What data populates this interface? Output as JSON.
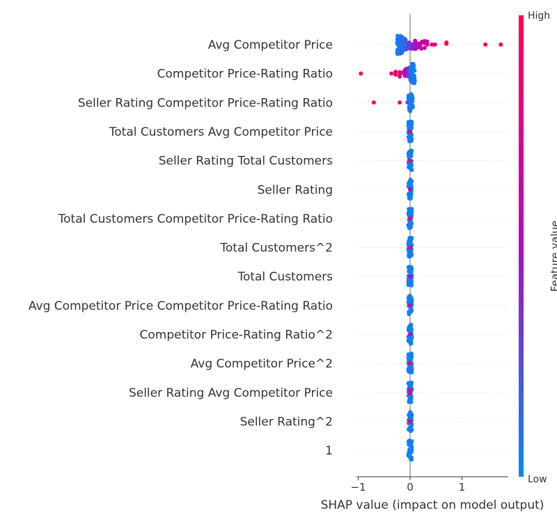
{
  "chart_data": {
    "type": "scatter",
    "subtype": "shap-beeswarm",
    "xlabel": "SHAP value (impact on model output)",
    "xlim": [
      -1.05,
      1.85
    ],
    "xticks": [
      -1,
      0,
      1
    ],
    "grid": false,
    "colorbar": {
      "label": "Feature value",
      "high_label": "High",
      "low_label": "Low",
      "low_color": "#008bfb",
      "mid_color": "#b00ac5",
      "high_color": "#ff0052"
    },
    "features": [
      {
        "name": "Avg Competitor Price",
        "points": [
          {
            "x": -0.22,
            "f": 0.05,
            "n": 30
          },
          {
            "x": -0.18,
            "f": 0.1,
            "n": 24
          },
          {
            "x": -0.12,
            "f": 0.1,
            "n": 14
          },
          {
            "x": -0.06,
            "f": 0.2,
            "n": 8
          },
          {
            "x": 0.0,
            "f": 0.3,
            "n": 6
          },
          {
            "x": 0.05,
            "f": 0.4,
            "n": 5
          },
          {
            "x": 0.1,
            "f": 0.5,
            "n": 5
          },
          {
            "x": 0.16,
            "f": 0.55,
            "n": 5
          },
          {
            "x": 0.22,
            "f": 0.6,
            "n": 4
          },
          {
            "x": 0.28,
            "f": 0.65,
            "n": 3
          },
          {
            "x": 0.33,
            "f": 0.7,
            "n": 2
          },
          {
            "x": 0.42,
            "f": 0.85,
            "n": 1
          },
          {
            "x": 0.48,
            "f": 0.9,
            "n": 1
          },
          {
            "x": 0.7,
            "f": 1.0,
            "n": 2
          },
          {
            "x": 1.45,
            "f": 1.0,
            "n": 1
          },
          {
            "x": 1.75,
            "f": 1.0,
            "n": 1
          }
        ]
      },
      {
        "name": "Competitor Price-Rating Ratio",
        "points": [
          {
            "x": -0.95,
            "f": 1.0,
            "n": 1
          },
          {
            "x": -0.36,
            "f": 0.95,
            "n": 1
          },
          {
            "x": -0.28,
            "f": 0.9,
            "n": 2
          },
          {
            "x": -0.2,
            "f": 0.8,
            "n": 3
          },
          {
            "x": -0.13,
            "f": 0.7,
            "n": 4
          },
          {
            "x": -0.07,
            "f": 0.55,
            "n": 6
          },
          {
            "x": -0.02,
            "f": 0.35,
            "n": 10
          },
          {
            "x": 0.02,
            "f": 0.15,
            "n": 20
          },
          {
            "x": 0.06,
            "f": 0.05,
            "n": 30
          }
        ]
      },
      {
        "name": "Seller Rating Competitor Price-Rating Ratio",
        "points": [
          {
            "x": -0.7,
            "f": 1.0,
            "n": 1
          },
          {
            "x": -0.2,
            "f": 0.95,
            "n": 1
          },
          {
            "x": -0.05,
            "f": 0.95,
            "n": 1
          },
          {
            "x": 0.0,
            "f": 0.1,
            "n": 30
          },
          {
            "x": 0.02,
            "f": 0.05,
            "n": 20
          }
        ]
      },
      {
        "name": "Total Customers Avg Competitor Price",
        "points": [
          {
            "x": 0.0,
            "f": 0.05,
            "n": 40
          },
          {
            "x": 0.0,
            "f": 0.7,
            "n": 1
          }
        ]
      },
      {
        "name": "Seller Rating Total Customers",
        "points": [
          {
            "x": 0.0,
            "f": 0.05,
            "n": 40
          },
          {
            "x": 0.0,
            "f": 0.9,
            "n": 1
          }
        ]
      },
      {
        "name": "Seller Rating",
        "points": [
          {
            "x": 0.0,
            "f": 0.05,
            "n": 40
          },
          {
            "x": 0.0,
            "f": 0.6,
            "n": 1
          }
        ]
      },
      {
        "name": "Total Customers Competitor Price-Rating Ratio",
        "points": [
          {
            "x": 0.0,
            "f": 0.05,
            "n": 40
          },
          {
            "x": 0.0,
            "f": 1.0,
            "n": 1
          }
        ]
      },
      {
        "name": "Total Customers^2",
        "points": [
          {
            "x": 0.0,
            "f": 0.05,
            "n": 40
          },
          {
            "x": 0.0,
            "f": 0.9,
            "n": 1
          }
        ]
      },
      {
        "name": "Total Customers",
        "points": [
          {
            "x": 0.0,
            "f": 0.05,
            "n": 40
          },
          {
            "x": 0.0,
            "f": 0.6,
            "n": 1
          }
        ]
      },
      {
        "name": "Avg Competitor Price Competitor Price-Rating Ratio",
        "points": [
          {
            "x": 0.0,
            "f": 0.05,
            "n": 40
          },
          {
            "x": 0.0,
            "f": 0.7,
            "n": 1
          }
        ]
      },
      {
        "name": "Competitor Price-Rating Ratio^2",
        "points": [
          {
            "x": 0.0,
            "f": 0.05,
            "n": 40
          },
          {
            "x": 0.0,
            "f": 0.7,
            "n": 1
          }
        ]
      },
      {
        "name": "Avg Competitor Price^2",
        "points": [
          {
            "x": 0.0,
            "f": 0.05,
            "n": 40
          },
          {
            "x": 0.0,
            "f": 0.95,
            "n": 1
          }
        ]
      },
      {
        "name": "Seller Rating Avg Competitor Price",
        "points": [
          {
            "x": 0.0,
            "f": 0.05,
            "n": 40
          },
          {
            "x": 0.0,
            "f": 0.8,
            "n": 2
          }
        ]
      },
      {
        "name": "Seller Rating^2",
        "points": [
          {
            "x": 0.0,
            "f": 0.05,
            "n": 40
          },
          {
            "x": 0.0,
            "f": 0.95,
            "n": 1
          }
        ]
      },
      {
        "name": "1",
        "points": [
          {
            "x": 0.0,
            "f": 0.05,
            "n": 40
          }
        ]
      }
    ]
  }
}
